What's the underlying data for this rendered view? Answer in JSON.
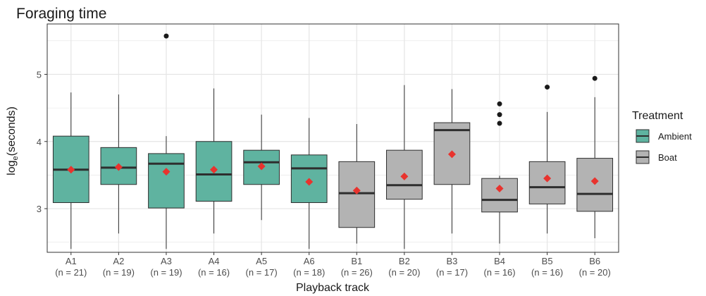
{
  "chart_data": {
    "type": "boxplot",
    "title": "Foraging time",
    "xlabel": "Playback track",
    "ylabel_base": "log",
    "ylabel_sub": "e",
    "ylabel_rest": "(seconds)",
    "ylim": [
      2.35,
      5.75
    ],
    "yticks": [
      3,
      4,
      5
    ],
    "grid": true,
    "legend": {
      "title": "Treatment",
      "position": "right",
      "entries": [
        {
          "name": "Ambient",
          "color": "#5fb3a0"
        },
        {
          "name": "Boat",
          "color": "#b3b3b3"
        }
      ]
    },
    "categories": [
      {
        "label": "A1",
        "n": "(n = 21)",
        "group": "Ambient",
        "min": 2.4,
        "q1": 3.09,
        "median": 3.58,
        "q3": 4.08,
        "max": 4.73,
        "mean": 3.58,
        "outliers": []
      },
      {
        "label": "A2",
        "n": "(n = 19)",
        "group": "Ambient",
        "min": 2.63,
        "q1": 3.36,
        "median": 3.61,
        "q3": 3.91,
        "max": 4.7,
        "mean": 3.62,
        "outliers": []
      },
      {
        "label": "A3",
        "n": "(n = 19)",
        "group": "Ambient",
        "min": 2.4,
        "q1": 3.01,
        "median": 3.67,
        "q3": 3.82,
        "max": 4.08,
        "mean": 3.55,
        "outliers": [
          5.57
        ]
      },
      {
        "label": "A4",
        "n": "(n = 16)",
        "group": "Ambient",
        "min": 2.63,
        "q1": 3.11,
        "median": 3.51,
        "q3": 4.0,
        "max": 4.79,
        "mean": 3.58,
        "outliers": []
      },
      {
        "label": "A5",
        "n": "(n = 17)",
        "group": "Ambient",
        "min": 2.83,
        "q1": 3.36,
        "median": 3.69,
        "q3": 3.87,
        "max": 4.4,
        "mean": 3.63,
        "outliers": []
      },
      {
        "label": "A6",
        "n": "(n = 18)",
        "group": "Ambient",
        "min": 2.4,
        "q1": 3.09,
        "median": 3.6,
        "q3": 3.8,
        "max": 4.35,
        "mean": 3.4,
        "outliers": []
      },
      {
        "label": "B1",
        "n": "(n = 26)",
        "group": "Boat",
        "min": 2.48,
        "q1": 2.72,
        "median": 3.23,
        "q3": 3.7,
        "max": 4.26,
        "mean": 3.27,
        "outliers": []
      },
      {
        "label": "B2",
        "n": "(n = 20)",
        "group": "Boat",
        "min": 2.4,
        "q1": 3.14,
        "median": 3.35,
        "q3": 3.87,
        "max": 4.84,
        "mean": 3.48,
        "outliers": []
      },
      {
        "label": "B3",
        "n": "(n = 17)",
        "group": "Boat",
        "min": 2.63,
        "q1": 3.36,
        "median": 4.17,
        "q3": 4.28,
        "max": 4.78,
        "mean": 3.81,
        "outliers": []
      },
      {
        "label": "B4",
        "n": "(n = 16)",
        "group": "Boat",
        "min": 2.48,
        "q1": 2.95,
        "median": 3.13,
        "q3": 3.45,
        "max": 3.49,
        "mean": 3.3,
        "outliers": [
          4.27,
          4.4,
          4.56
        ]
      },
      {
        "label": "B5",
        "n": "(n = 16)",
        "group": "Boat",
        "min": 2.63,
        "q1": 3.07,
        "median": 3.32,
        "q3": 3.7,
        "max": 4.44,
        "mean": 3.45,
        "outliers": [
          4.81
        ]
      },
      {
        "label": "B6",
        "n": "(n = 20)",
        "group": "Boat",
        "min": 2.56,
        "q1": 2.96,
        "median": 3.22,
        "q3": 3.75,
        "max": 4.66,
        "mean": 3.41,
        "outliers": [
          4.94
        ]
      }
    ],
    "colors": {
      "Ambient": "#5fb3a0",
      "Boat": "#b3b3b3",
      "mean": "#e8332e",
      "outlier": "#1a1a1a",
      "grid": "#e5e5e5",
      "box_line": "#2e2e2e"
    }
  }
}
